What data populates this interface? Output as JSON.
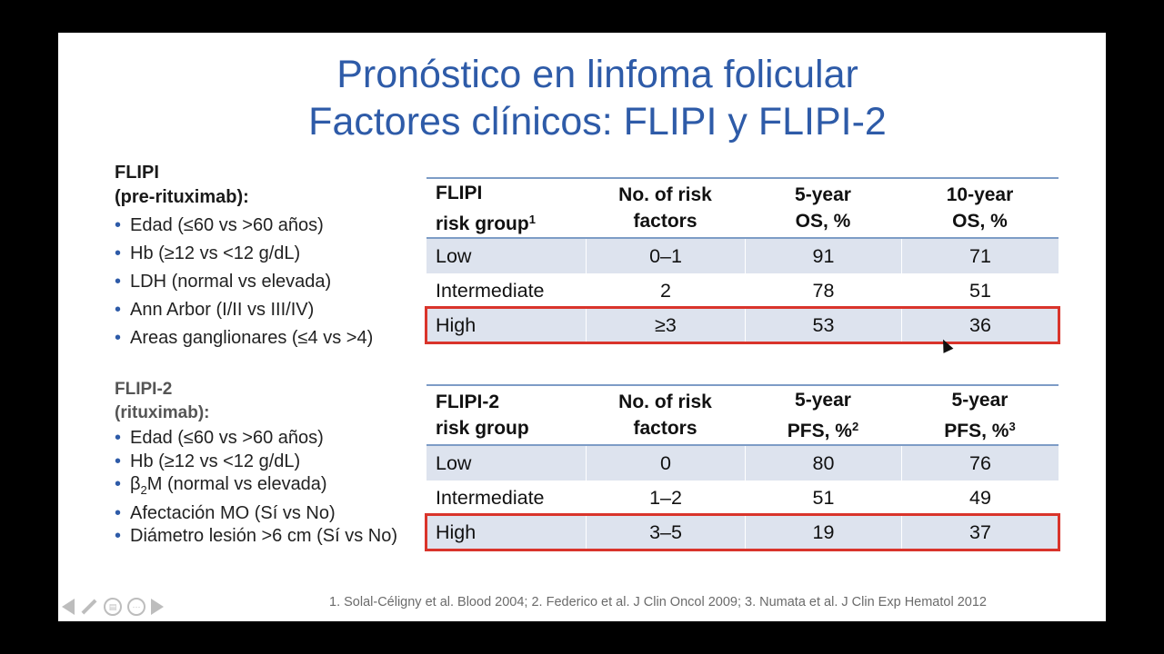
{
  "title": {
    "line1": "Pronóstico en linfoma folicular",
    "line2": "Factores clínicos: FLIPI y FLIPI-2"
  },
  "flipi_factors": {
    "head1": "FLIPI",
    "head2": "(pre-rituximab):",
    "items": [
      "Edad (≤60 vs >60 años)",
      "Hb (≥12 vs <12 g/dL)",
      "LDH (normal vs elevada)",
      "Ann Arbor (I/II vs III/IV)",
      "Areas ganglionares (≤4 vs >4)"
    ]
  },
  "flipi2_factors": {
    "head1": "FLIPI-2",
    "head2": "(rituximab):",
    "items": [
      "Edad (≤60 vs >60 años)",
      "Hb (≥12 vs <12 g/dL)",
      "β",
      "2",
      "M (normal vs elevada)",
      "Afectación MO (Sí vs No)",
      "Diámetro lesión >6 cm (Sí vs No)"
    ]
  },
  "table1": {
    "headers": {
      "c0a": "FLIPI",
      "c0b": "risk group",
      "c0sup": "1",
      "c1a": "No. of risk",
      "c1b": "factors",
      "c2a": "5-year",
      "c2b": "OS, %",
      "c3a": "10-year",
      "c3b": "OS, %"
    },
    "rows": [
      {
        "group": "Low",
        "factors": "0–1",
        "v1": "91",
        "v2": "71"
      },
      {
        "group": "Intermediate",
        "factors": "2",
        "v1": "78",
        "v2": "51"
      },
      {
        "group": "High",
        "factors": "≥3",
        "v1": "53",
        "v2": "36"
      }
    ]
  },
  "table2": {
    "headers": {
      "c0a": "FLIPI-2",
      "c0b": "risk group",
      "c1a": "No. of risk",
      "c1b": "factors",
      "c2a": "5-year",
      "c2b": "PFS, %",
      "c2sup": "2",
      "c3a": "5-year",
      "c3b": "PFS, %",
      "c3sup": "3"
    },
    "rows": [
      {
        "group": "Low",
        "factors": "0",
        "v1": "80",
        "v2": "76"
      },
      {
        "group": "Intermediate",
        "factors": "1–2",
        "v1": "51",
        "v2": "49"
      },
      {
        "group": "High",
        "factors": "3–5",
        "v1": "19",
        "v2": "37"
      }
    ]
  },
  "footnote": "1. Solal-Céligny et al. Blood 2004; 2. Federico et al. J Clin Oncol 2009; 3. Numata et al. J Clin Exp Hematol 2012",
  "colors": {
    "title": "#2E5BA8",
    "table_rule": "#7d9cc6",
    "row_shade": "#dde3ee",
    "highlight": "#d9342b"
  }
}
